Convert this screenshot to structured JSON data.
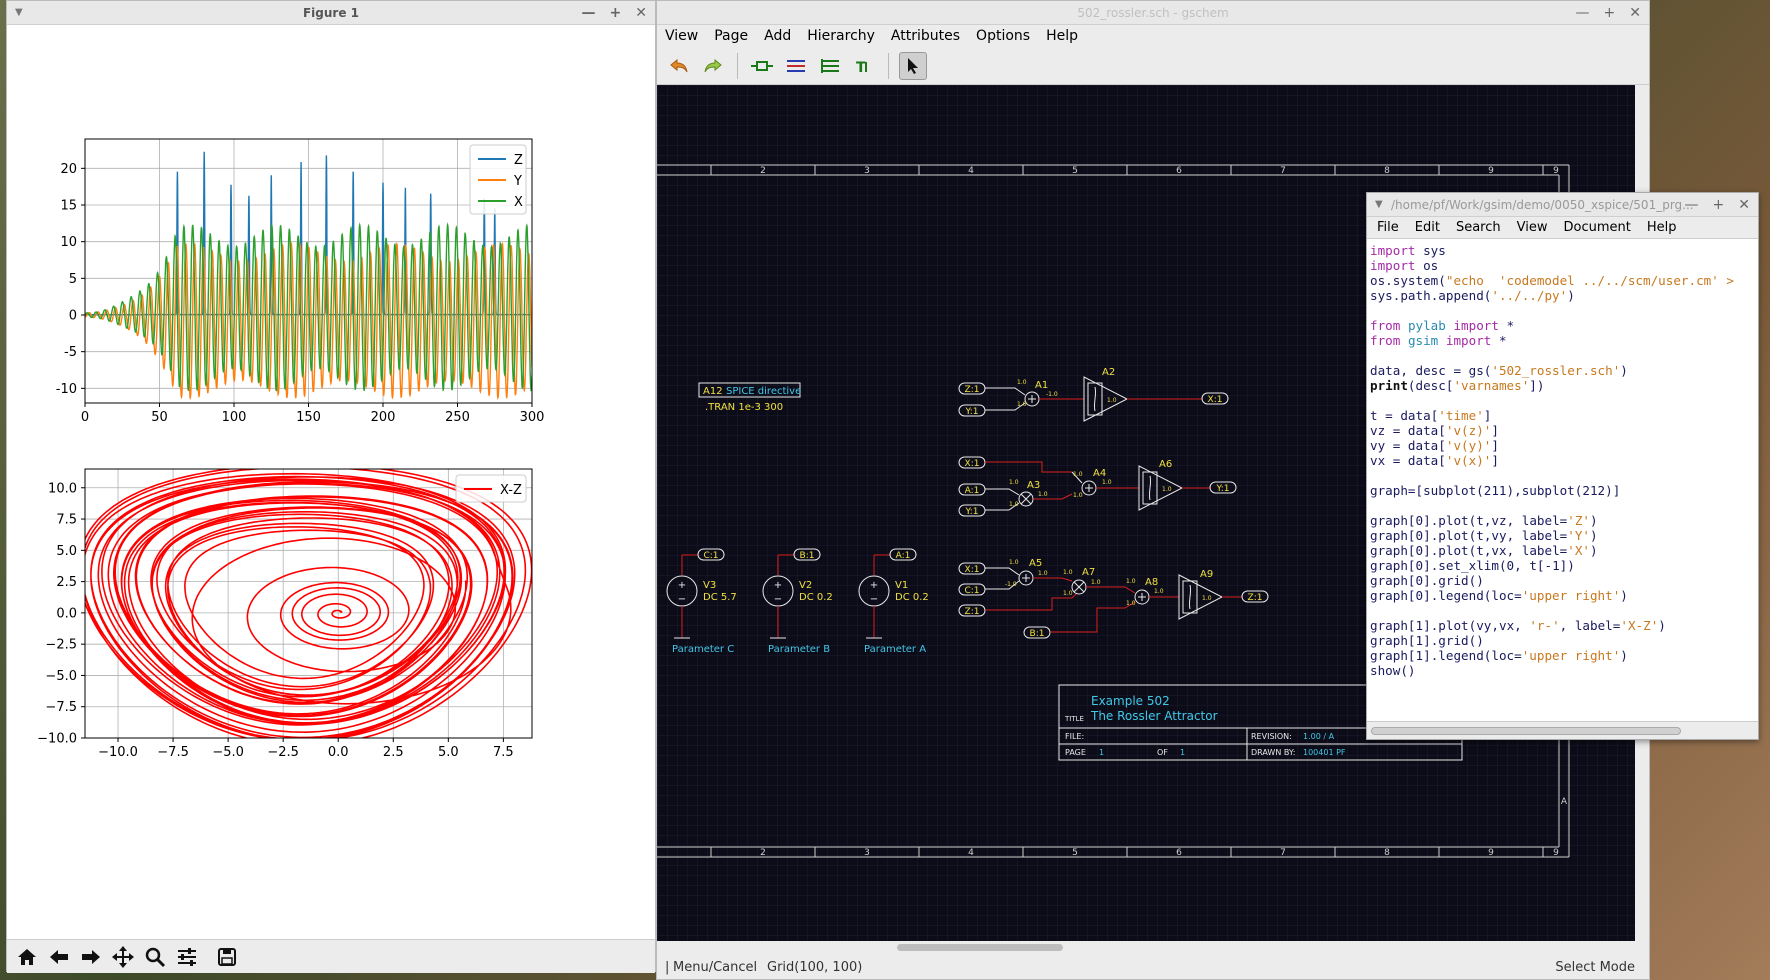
{
  "gschem": {
    "title": "502_rossler.sch - gschem",
    "menu": [
      "View",
      "Page",
      "Add",
      "Hierarchy",
      "Attributes",
      "Options",
      "Help"
    ],
    "status_left": "Menu/Cancel",
    "status_grid": "Grid(100, 100)",
    "status_mode": "Select Mode",
    "schematic": {
      "frame_numbers": [
        "2",
        "3",
        "4",
        "5",
        "6",
        "7",
        "8",
        "9"
      ],
      "frame_letter": "A",
      "spice_directive": {
        "ref": "A12",
        "label": "SPICE directive",
        "text": ".TRAN 1e-3 300"
      },
      "sources": [
        {
          "net": "C:1",
          "ref": "V3",
          "value": "DC 5.7",
          "caption": "Parameter C"
        },
        {
          "net": "B:1",
          "ref": "V2",
          "value": "DC 0.2",
          "caption": "Parameter B"
        },
        {
          "net": "A:1",
          "ref": "V1",
          "value": "DC 0.2",
          "caption": "Parameter A"
        }
      ],
      "blocks": {
        "A1": "A1",
        "A2": "A2",
        "A3": "A3",
        "A4": "A4",
        "A5": "A5",
        "A6": "A6",
        "A7": "A7",
        "A8": "A8",
        "A9": "A9"
      },
      "gain_small": "1.0",
      "gain_neg": "-1.0",
      "nets": {
        "r1_in1": "Z:1",
        "r1_in2": "Y:1",
        "r1_out": "X:1",
        "r2_in1": "X:1",
        "r2_in2": "A:1",
        "r2_in3": "Y:1",
        "r2_out": "Y:1",
        "r3_in1": "X:1",
        "r3_in2": "C:1",
        "r3_in3": "Z:1",
        "r3_in4": "B:1",
        "r3_out": "Z:1"
      },
      "titleblock": {
        "title_label": "TITLE",
        "title_line1": "Example 502",
        "title_line2": "The Rossler Attractor",
        "file_label": "FILE:",
        "page_label": "PAGE",
        "page_value": "1",
        "of_label": "OF",
        "of_value": "1",
        "revision_label": "REVISION:",
        "revision_value": "1.00 / A",
        "drawn_label": "DRAWN BY:",
        "drawn_value": "100401 PF"
      }
    }
  },
  "figure": {
    "title": "Figure 1",
    "tools": [
      "home-icon",
      "back-icon",
      "forward-icon",
      "pan-icon",
      "zoom-icon",
      "configure-icon",
      "save-icon"
    ]
  },
  "chart_data": [
    {
      "type": "line",
      "title": "",
      "xlabel": "",
      "ylabel": "",
      "xlim": [
        0,
        300
      ],
      "ylim": [
        -12,
        24
      ],
      "x_ticks": [
        0,
        50,
        100,
        150,
        200,
        250,
        300
      ],
      "y_ticks": [
        -10,
        -5,
        0,
        5,
        10,
        15,
        20
      ],
      "grid": true,
      "legend_position": "upper right",
      "series": [
        {
          "name": "Z",
          "color": "#1f77b4",
          "description_peaks": [
            [
              62,
              19.5
            ],
            [
              80,
              22.2
            ],
            [
              98,
              17.7
            ],
            [
              110,
              16.2
            ],
            [
              125,
              19.0
            ],
            [
              145,
              20.8
            ],
            [
              162,
              21.7
            ],
            [
              180,
              19.5
            ],
            [
              200,
              18.0
            ],
            [
              215,
              17.3
            ],
            [
              232,
              16.5
            ],
            [
              268,
              15.8
            ],
            [
              275,
              14.5
            ]
          ]
        },
        {
          "name": "Y",
          "color": "#ff7f0e",
          "min": -10.5,
          "max": 8.5
        },
        {
          "name": "X",
          "color": "#2ca02c",
          "min": -9.0,
          "max": 11.5
        }
      ]
    },
    {
      "type": "line",
      "title": "",
      "xlabel": "",
      "ylabel": "",
      "xlim": [
        -11.5,
        8.8
      ],
      "ylim": [
        -10,
        11.5
      ],
      "x_ticks": [
        -10.0,
        -7.5,
        -5.0,
        -2.5,
        0.0,
        2.5,
        5.0,
        7.5
      ],
      "y_ticks": [
        -10.0,
        -7.5,
        -5.0,
        -2.5,
        0.0,
        2.5,
        5.0,
        7.5,
        10.0
      ],
      "grid": true,
      "legend_position": "upper right",
      "series": [
        {
          "name": "X-Z",
          "color": "#ff0000",
          "x_range": [
            -10.7,
            7.7
          ],
          "y_range": [
            -9.6,
            11.2
          ]
        }
      ]
    }
  ],
  "editor": {
    "title": "/home/pf/Work/gsim/demo/0050_xspice/501_prg...",
    "menu": [
      "File",
      "Edit",
      "Search",
      "View",
      "Document",
      "Help"
    ],
    "lines": [
      "import sys",
      "import os",
      "os.system(\"echo  'codemodel ../../scm/user.cm' >",
      "sys.path.append('../../py')",
      "",
      "from pylab import *",
      "from gsim import *",
      "",
      "data, desc = gs('502_rossler.sch')",
      "print(desc['varnames'])",
      "",
      "t = data['time']",
      "vz = data['v(z)']",
      "vy = data['v(y)']",
      "vx = data['v(x)']",
      "",
      "graph=[subplot(211),subplot(212)]",
      "",
      "graph[0].plot(t,vz, label='Z')",
      "graph[0].plot(t,vy, label='Y')",
      "graph[0].plot(t,vx, label='X')",
      "graph[0].set_xlim(0, t[-1])",
      "graph[0].grid()",
      "graph[0].legend(loc='upper right')",
      "",
      "graph[1].plot(vy,vx, 'r-', label='X-Z')",
      "graph[1].grid()",
      "graph[1].legend(loc='upper right')",
      "show()"
    ]
  }
}
